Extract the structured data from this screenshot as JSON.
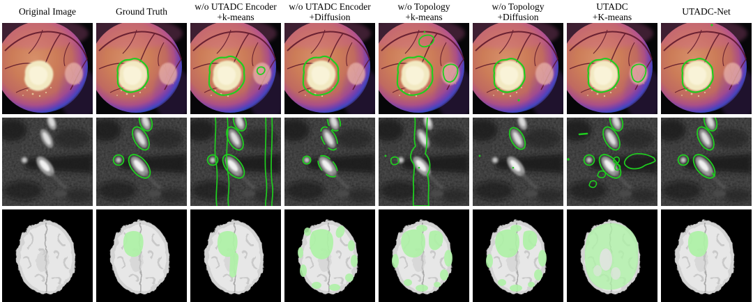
{
  "figure": {
    "type": "qualitative-segmentation-comparison",
    "colors": {
      "page_bg": "#ffffff",
      "cell_bg": "#000000",
      "header_text": "#000000",
      "contour_green": "#1fce1f",
      "fill_green": "#aef2a6"
    },
    "columns": [
      {
        "id": "original-image",
        "line1": "Original Image",
        "line2": ""
      },
      {
        "id": "ground-truth",
        "line1": "Ground Truth",
        "line2": ""
      },
      {
        "id": "wo-utadc-encoder-kmeans",
        "line1": "w/o UTADC Encoder",
        "line2": "+k-means"
      },
      {
        "id": "wo-utadc-encoder-diffusion",
        "line1": "w/o UTADC Encoder",
        "line2": "+Diffusion"
      },
      {
        "id": "wo-topology-kmeans",
        "line1": "w/o Topology",
        "line2": "+k-means"
      },
      {
        "id": "wo-topology-diffusion",
        "line1": "w/o Topology",
        "line2": "+Diffusion"
      },
      {
        "id": "utadc-kmeans",
        "line1": "UTADC",
        "line2": "+K-means"
      },
      {
        "id": "utadc-net",
        "line1": "UTADC-Net",
        "line2": ""
      }
    ],
    "rows": [
      {
        "id": "fundus",
        "modality": "retinal-fundus-photograph",
        "cells": [
          {
            "overlays": []
          },
          {
            "overlays": [
              "lesion-contour"
            ]
          },
          {
            "overlays": [
              "lesion-contour-loose",
              "disc-contour-small"
            ]
          },
          {
            "overlays": [
              "lesion-contour-loose"
            ]
          },
          {
            "overlays": [
              "lesion-contour-loose",
              "top-blob-contour",
              "disc-contour-large"
            ]
          },
          {
            "overlays": [
              "lesion-contour",
              "bottom-dot"
            ]
          },
          {
            "overlays": [
              "lesion-contour",
              "disc-contour-large"
            ]
          },
          {
            "overlays": [
              "lesion-contour",
              "top-dot"
            ]
          }
        ]
      },
      {
        "id": "vessel",
        "modality": "grayscale-vessel-mri",
        "cells": [
          {
            "overlays": []
          },
          {
            "overlays": [
              "vessel-contours"
            ]
          },
          {
            "overlays": [
              "vessel-contours",
              "vertical-lines"
            ]
          },
          {
            "overlays": [
              "vessel-contours-partial"
            ]
          },
          {
            "overlays": [
              "vertical-band",
              "left-blob-contour",
              "scatter-dots"
            ]
          },
          {
            "overlays": [
              "upper-vessel-contour",
              "scatter-dots"
            ]
          },
          {
            "overlays": [
              "vessel-contours",
              "false-positive-blobs"
            ]
          },
          {
            "overlays": [
              "vessel-contours",
              "tiny-mark"
            ]
          }
        ]
      },
      {
        "id": "brain",
        "modality": "axial-brain-mri",
        "cells": [
          {
            "overlays": []
          },
          {
            "overlays": [
              "frontal-lesion"
            ]
          },
          {
            "overlays": [
              "frontal-lesion",
              "ventricle-patch"
            ]
          },
          {
            "overlays": [
              "frontal-lesion-large",
              "peripheral-patches"
            ]
          },
          {
            "overlays": [
              "frontal-bilateral-patches",
              "side-bottom-patches"
            ]
          },
          {
            "overlays": [
              "frontal-bilateral-patches",
              "side-bottom-patches"
            ]
          },
          {
            "overlays": [
              "full-coverage"
            ]
          },
          {
            "overlays": [
              "frontal-lesion"
            ]
          }
        ]
      }
    ]
  }
}
